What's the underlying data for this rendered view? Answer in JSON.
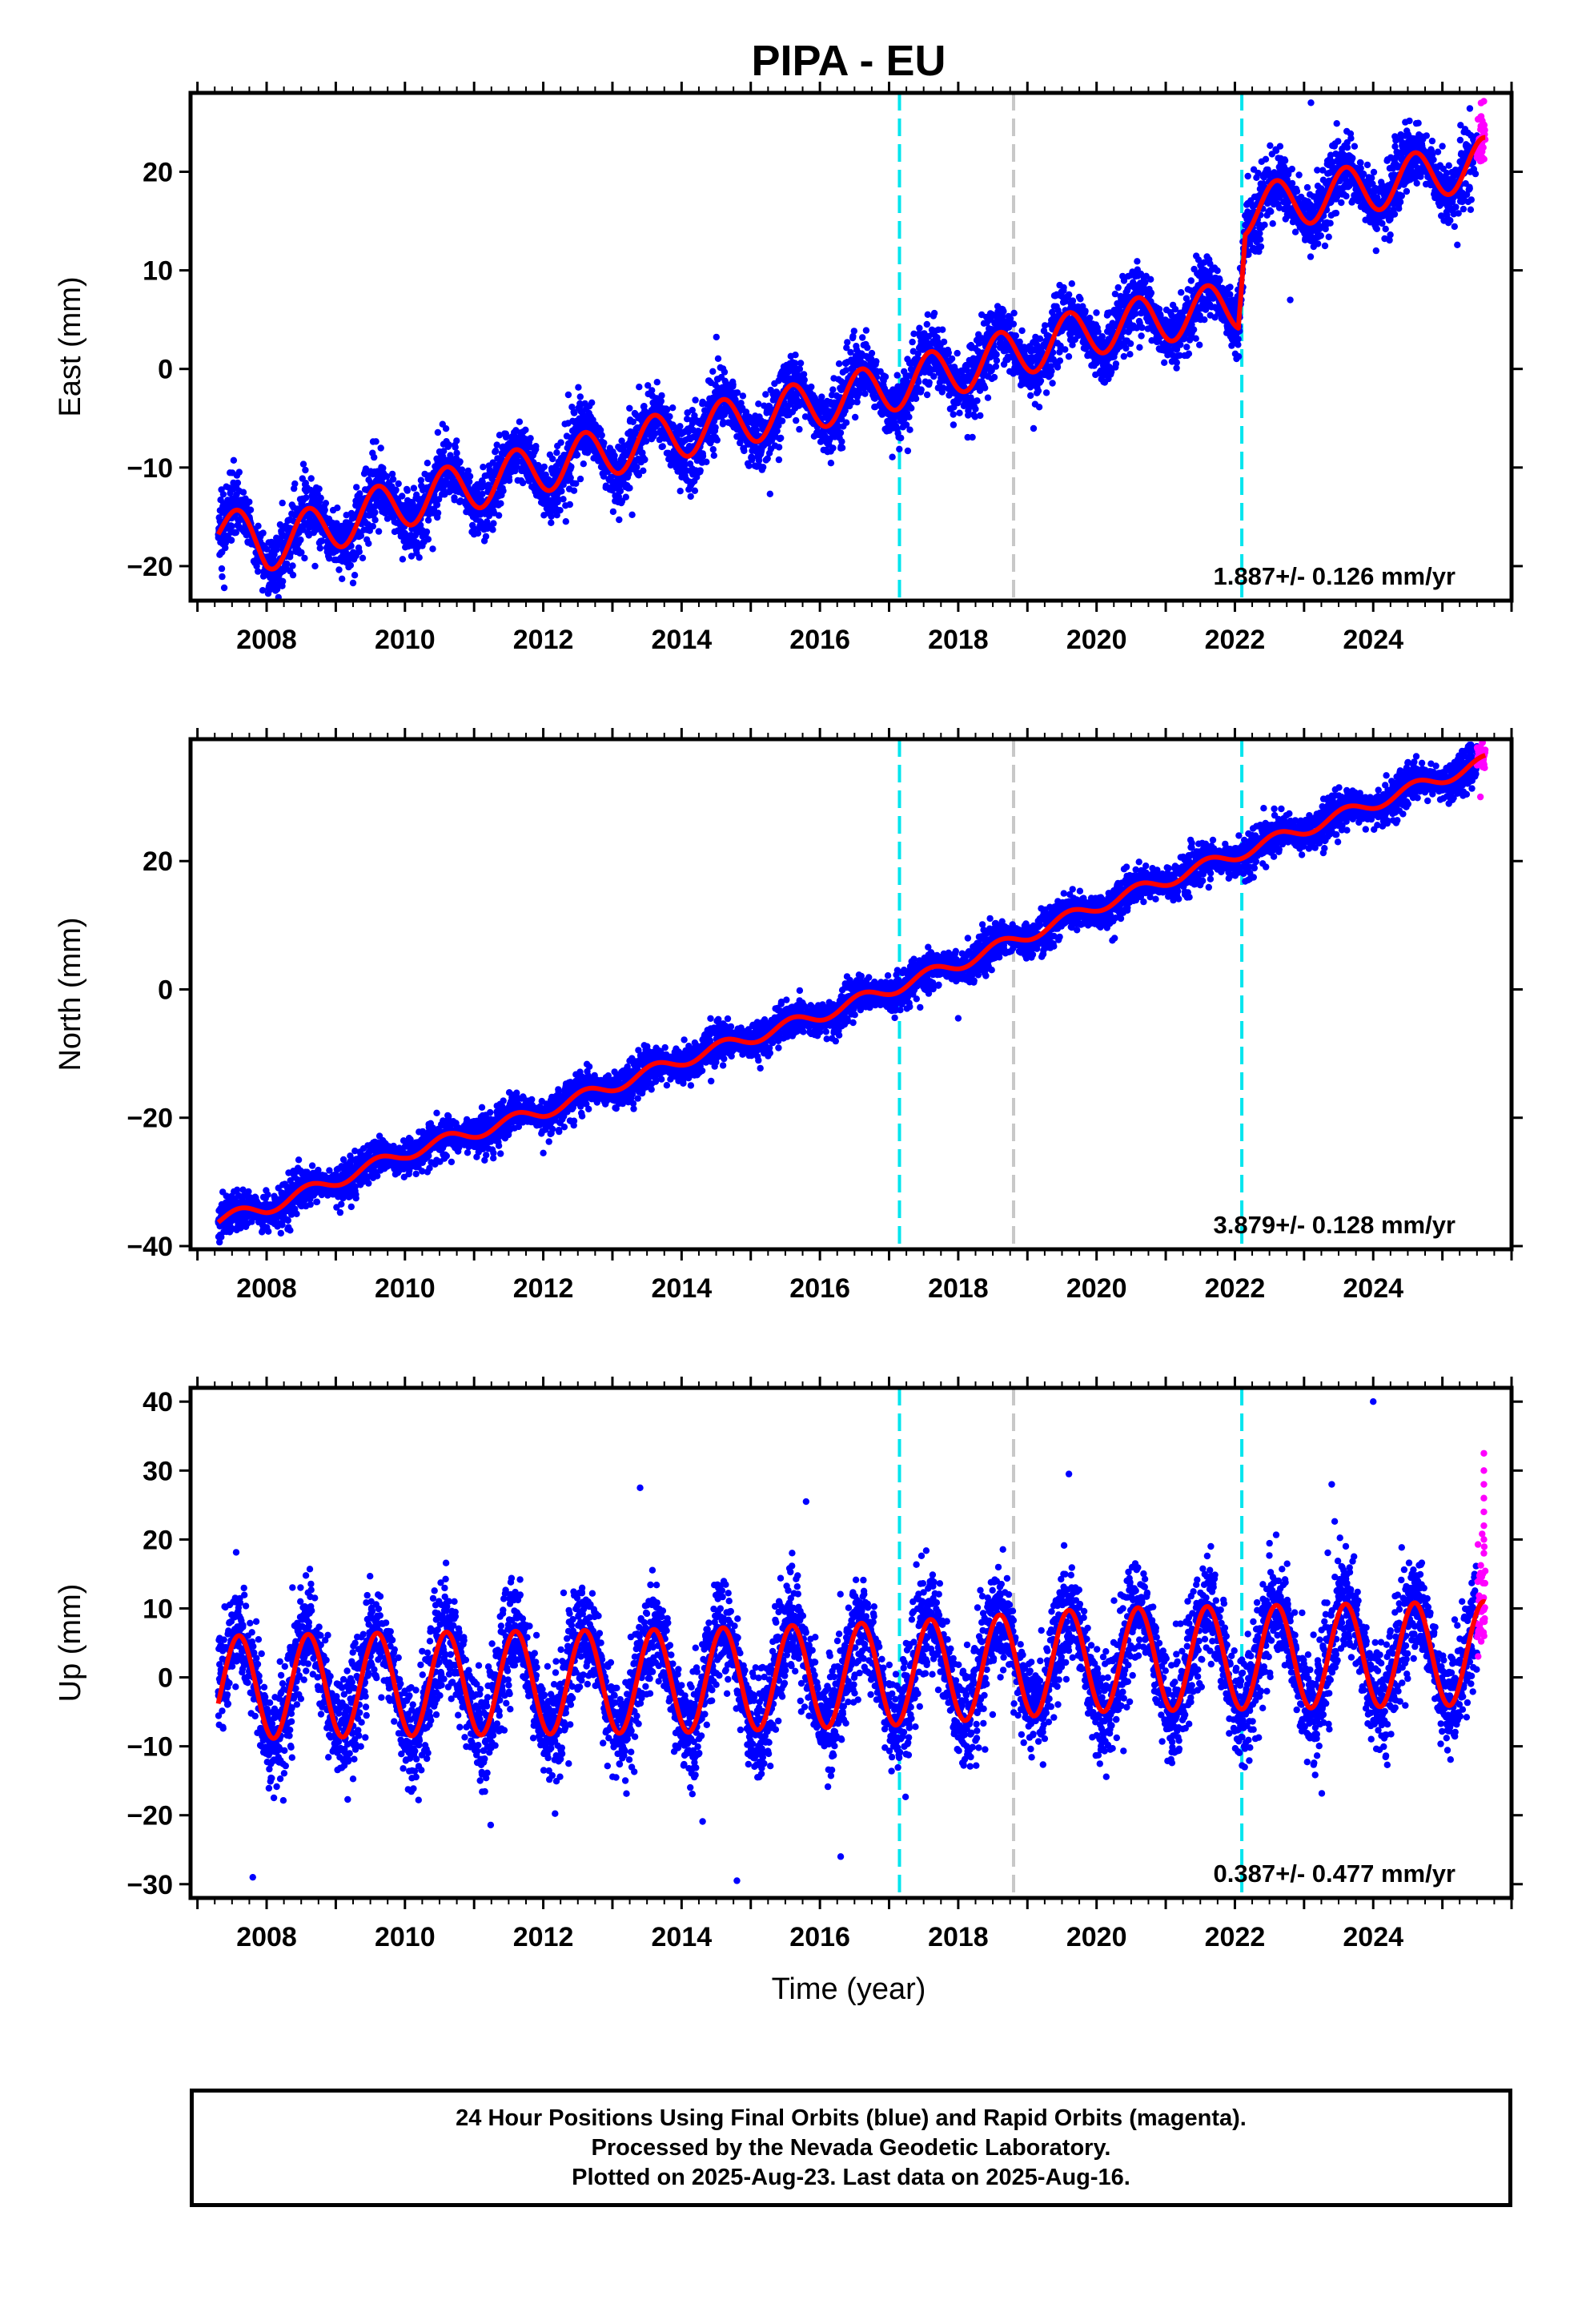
{
  "title": "PIPA - EU",
  "xlabel": "Time (year)",
  "footer": {
    "line1": "24 Hour Positions Using Final Orbits (blue) and Rapid Orbits (magenta).",
    "line2": "Processed by the Nevada Geodetic Laboratory.",
    "line3": "Plotted on 2025-Aug-23. Last data on 2025-Aug-16."
  },
  "colors": {
    "final_points": "#0000ff",
    "rapid_points": "#ff00ff",
    "model_fit": "#ff0000",
    "equipment_change": "#00e5ee",
    "earthquake": "#c8c8c8"
  },
  "chart_data": [
    {
      "type": "scatter",
      "panel": "east",
      "ylabel": "East (mm)",
      "xlim": [
        2006.9,
        2026.0
      ],
      "ylim": [
        -23.5,
        28
      ],
      "yticks": [
        -20,
        -10,
        0,
        10,
        20
      ],
      "xticks": [
        2008,
        2010,
        2012,
        2014,
        2016,
        2018,
        2020,
        2022,
        2024
      ],
      "data_start": 2007.3,
      "data_end": 2025.62,
      "rapid_start": 2025.5,
      "rate_label": "1.887+/- 0.126 mm/yr",
      "trend": [
        [
          2007.3,
          -16.0
        ],
        [
          2008.0,
          -18.0
        ],
        [
          2010.0,
          -13.5
        ],
        [
          2012.0,
          -10.0
        ],
        [
          2014.0,
          -6.5
        ],
        [
          2016.0,
          -3.5
        ],
        [
          2017.2,
          -1.5
        ],
        [
          2018.0,
          0.0
        ],
        [
          2020.0,
          4.0
        ],
        [
          2022.05,
          6.5
        ],
        [
          2022.15,
          16.0
        ],
        [
          2024.0,
          18.5
        ],
        [
          2025.62,
          21.0
        ]
      ],
      "seasonal_amplitude": 2.5,
      "scatter_sd": 1.6,
      "equipment_changes": [
        2017.15,
        2022.1
      ],
      "earthquakes": [
        2018.8
      ],
      "outliers": [
        [
          2022.8,
          7.0
        ],
        [
          2023.1,
          27.0
        ],
        [
          2008.7,
          -20.0
        ]
      ]
    },
    {
      "type": "scatter",
      "panel": "north",
      "ylabel": "North (mm)",
      "xlim": [
        2006.9,
        2026.0
      ],
      "ylim": [
        -40.5,
        39
      ],
      "yticks": [
        -40,
        -20,
        0,
        20
      ],
      "xticks": [
        2008,
        2010,
        2012,
        2014,
        2016,
        2018,
        2020,
        2022,
        2024
      ],
      "data_start": 2007.3,
      "data_end": 2025.62,
      "rapid_start": 2025.5,
      "rate_label": "3.879+/- 0.128 mm/yr",
      "trend": [
        [
          2007.3,
          -36.0
        ],
        [
          2008.0,
          -34.0
        ],
        [
          2010.0,
          -25.5
        ],
        [
          2012.0,
          -19.0
        ],
        [
          2014.0,
          -11.0
        ],
        [
          2016.0,
          -4.0
        ],
        [
          2018.0,
          4.0
        ],
        [
          2020.0,
          13.0
        ],
        [
          2022.0,
          21.0
        ],
        [
          2024.0,
          29.0
        ],
        [
          2025.62,
          35.5
        ]
      ],
      "seasonal_amplitude": 1.0,
      "scatter_sd": 1.4,
      "equipment_changes": [
        2017.15,
        2022.1
      ],
      "earthquakes": [
        2018.8
      ],
      "outliers": [
        [
          2018.0,
          -4.5
        ],
        [
          2012.0,
          -25.5
        ],
        [
          2025.55,
          30.0
        ]
      ]
    },
    {
      "type": "scatter",
      "panel": "up",
      "ylabel": "Up (mm)",
      "xlabel": "Time (year)",
      "xlim": [
        2006.9,
        2026.0
      ],
      "ylim": [
        -32,
        42
      ],
      "yticks": [
        -30,
        -20,
        -10,
        0,
        10,
        20,
        30,
        40
      ],
      "xticks": [
        2008,
        2010,
        2012,
        2014,
        2016,
        2018,
        2020,
        2022,
        2024
      ],
      "data_start": 2007.3,
      "data_end": 2025.62,
      "rapid_start": 2025.5,
      "rate_label": "0.387+/- 0.477 mm/yr",
      "trend": [
        [
          2007.3,
          -1.5
        ],
        [
          2010.0,
          -1.0
        ],
        [
          2014.0,
          -0.5
        ],
        [
          2017.0,
          0.5
        ],
        [
          2020.0,
          2.5
        ],
        [
          2025.62,
          3.5
        ]
      ],
      "seasonal_amplitude": 7.5,
      "scatter_sd": 3.8,
      "equipment_changes": [
        2017.15,
        2022.1
      ],
      "earthquakes": [
        2018.8
      ],
      "outliers": [
        [
          2007.8,
          -29.0
        ],
        [
          2024.0,
          40.0
        ],
        [
          2013.4,
          27.5
        ],
        [
          2015.8,
          25.5
        ],
        [
          2014.8,
          -29.5
        ],
        [
          2019.6,
          29.5
        ],
        [
          2016.3,
          -26.0
        ],
        [
          2023.4,
          28.0
        ],
        [
          2025.6,
          32.5
        ],
        [
          2025.6,
          30.0
        ],
        [
          2025.6,
          28.0
        ],
        [
          2025.6,
          26.0
        ],
        [
          2025.6,
          24.0
        ],
        [
          2025.6,
          22.0
        ],
        [
          2025.6,
          20.0
        ],
        [
          2025.6,
          18.0
        ]
      ]
    }
  ]
}
